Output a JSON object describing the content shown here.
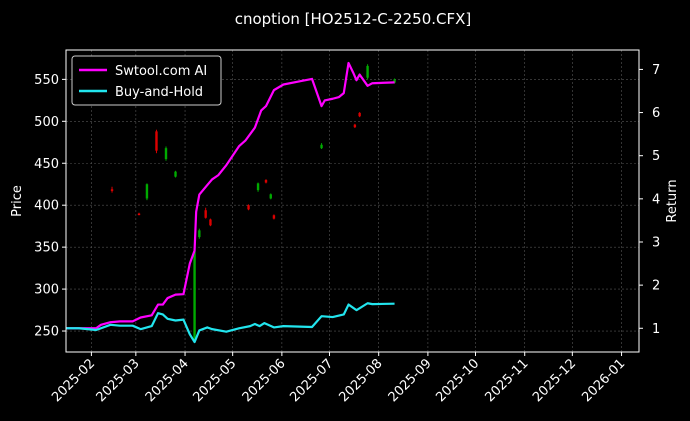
{
  "chart_data": {
    "type": "line",
    "title": "cnoption [HO2512-C-2250.CFX]",
    "ylabel": "Price",
    "y2label": "Return",
    "x_ticks": [
      "2025-02",
      "2025-03",
      "2025-04",
      "2025-05",
      "2025-06",
      "2025-07",
      "2025-08",
      "2025-09",
      "2025-10",
      "2025-11",
      "2025-12",
      "2026-01"
    ],
    "xlim": [
      "2025-01-16",
      "2026-01-12"
    ],
    "ylim": [
      225,
      585
    ],
    "y_ticks": [
      250,
      300,
      350,
      400,
      450,
      500,
      550
    ],
    "y2lim": [
      0.45,
      7.45
    ],
    "y2_ticks": [
      1,
      2,
      3,
      4,
      5,
      6,
      7
    ],
    "grid": true,
    "legend_position": "upper-left",
    "colors": {
      "up": "#00aa00",
      "down": "#dd0000",
      "strategy": "#ff00ff",
      "benchmark": "#22e5ee",
      "background": "#000000",
      "grid": "#555555"
    },
    "series": [
      {
        "name": "Swtool.com AI",
        "color": "#ff00ff",
        "axis": "right",
        "points": [
          [
            "2025-01-16",
            1.0
          ],
          [
            "2025-01-24",
            1.0
          ],
          [
            "2025-02-04",
            1.0
          ],
          [
            "2025-02-07",
            1.08
          ],
          [
            "2025-02-13",
            1.14
          ],
          [
            "2025-02-19",
            1.16
          ],
          [
            "2025-02-27",
            1.16
          ],
          [
            "2025-03-04",
            1.25
          ],
          [
            "2025-03-11",
            1.3
          ],
          [
            "2025-03-15",
            1.55
          ],
          [
            "2025-03-18",
            1.55
          ],
          [
            "2025-03-21",
            1.7
          ],
          [
            "2025-03-26",
            1.78
          ],
          [
            "2025-03-31",
            1.79
          ],
          [
            "2025-04-04",
            2.5
          ],
          [
            "2025-04-07",
            2.8
          ],
          [
            "2025-04-08",
            3.7
          ],
          [
            "2025-04-10",
            4.1
          ],
          [
            "2025-04-15",
            4.32
          ],
          [
            "2025-04-18",
            4.45
          ],
          [
            "2025-04-22",
            4.55
          ],
          [
            "2025-04-27",
            4.78
          ],
          [
            "2025-05-05",
            5.22
          ],
          [
            "2025-05-09",
            5.35
          ],
          [
            "2025-05-15",
            5.65
          ],
          [
            "2025-05-19",
            6.05
          ],
          [
            "2025-05-22",
            6.15
          ],
          [
            "2025-05-27",
            6.52
          ],
          [
            "2025-06-02",
            6.65
          ],
          [
            "2025-06-13",
            6.73
          ],
          [
            "2025-06-20",
            6.78
          ],
          [
            "2025-06-26",
            6.15
          ],
          [
            "2025-06-28",
            6.28
          ],
          [
            "2025-07-03",
            6.32
          ],
          [
            "2025-07-07",
            6.36
          ],
          [
            "2025-07-10",
            6.45
          ],
          [
            "2025-07-13",
            7.15
          ],
          [
            "2025-07-16",
            6.92
          ],
          [
            "2025-07-18",
            6.75
          ],
          [
            "2025-07-20",
            6.88
          ],
          [
            "2025-07-25",
            6.62
          ],
          [
            "2025-07-28",
            6.68
          ],
          [
            "2025-08-11",
            6.7
          ]
        ]
      },
      {
        "name": "Buy-and-Hold",
        "color": "#22e5ee",
        "axis": "right",
        "points": [
          [
            "2025-01-16",
            1.0
          ],
          [
            "2025-01-24",
            1.0
          ],
          [
            "2025-02-04",
            0.96
          ],
          [
            "2025-02-13",
            1.08
          ],
          [
            "2025-02-19",
            1.06
          ],
          [
            "2025-02-27",
            1.06
          ],
          [
            "2025-03-04",
            0.98
          ],
          [
            "2025-03-11",
            1.05
          ],
          [
            "2025-03-15",
            1.35
          ],
          [
            "2025-03-18",
            1.32
          ],
          [
            "2025-03-21",
            1.22
          ],
          [
            "2025-03-26",
            1.18
          ],
          [
            "2025-03-31",
            1.2
          ],
          [
            "2025-04-04",
            0.86
          ],
          [
            "2025-04-07",
            0.68
          ],
          [
            "2025-04-10",
            0.95
          ],
          [
            "2025-04-15",
            1.02
          ],
          [
            "2025-04-18",
            0.98
          ],
          [
            "2025-04-27",
            0.92
          ],
          [
            "2025-05-05",
            1.0
          ],
          [
            "2025-05-12",
            1.05
          ],
          [
            "2025-05-15",
            1.1
          ],
          [
            "2025-05-18",
            1.05
          ],
          [
            "2025-05-21",
            1.12
          ],
          [
            "2025-05-27",
            1.02
          ],
          [
            "2025-06-02",
            1.05
          ],
          [
            "2025-06-20",
            1.03
          ],
          [
            "2025-06-26",
            1.28
          ],
          [
            "2025-07-03",
            1.26
          ],
          [
            "2025-07-10",
            1.32
          ],
          [
            "2025-07-13",
            1.55
          ],
          [
            "2025-07-18",
            1.42
          ],
          [
            "2025-07-25",
            1.58
          ],
          [
            "2025-07-28",
            1.56
          ],
          [
            "2025-08-11",
            1.57
          ]
        ]
      }
    ],
    "candles": [
      {
        "date": "2025-02-14",
        "open": 419,
        "close": 417,
        "high": 422,
        "low": 415
      },
      {
        "date": "2025-03-03",
        "open": 390,
        "close": 389,
        "high": 391,
        "low": 388
      },
      {
        "date": "2025-03-08",
        "open": 408,
        "close": 425,
        "high": 426,
        "low": 406
      },
      {
        "date": "2025-03-14",
        "open": 488,
        "close": 465,
        "high": 490,
        "low": 462
      },
      {
        "date": "2025-03-20",
        "open": 455,
        "close": 468,
        "high": 470,
        "low": 453
      },
      {
        "date": "2025-03-26",
        "open": 434,
        "close": 440,
        "high": 441,
        "low": 433
      },
      {
        "date": "2025-04-07",
        "open": 240,
        "close": 345,
        "high": 347,
        "low": 238
      },
      {
        "date": "2025-04-10",
        "open": 362,
        "close": 370,
        "high": 372,
        "low": 360
      },
      {
        "date": "2025-04-14",
        "open": 394,
        "close": 385,
        "high": 397,
        "low": 384
      },
      {
        "date": "2025-04-17",
        "open": 383,
        "close": 376,
        "high": 384,
        "low": 375
      },
      {
        "date": "2025-05-11",
        "open": 400,
        "close": 395,
        "high": 401,
        "low": 394
      },
      {
        "date": "2025-05-17",
        "open": 418,
        "close": 426,
        "high": 427,
        "low": 416
      },
      {
        "date": "2025-05-22",
        "open": 430,
        "close": 427,
        "high": 431,
        "low": 426
      },
      {
        "date": "2025-05-25",
        "open": 408,
        "close": 413,
        "high": 414,
        "low": 407
      },
      {
        "date": "2025-05-27",
        "open": 388,
        "close": 384,
        "high": 389,
        "low": 383
      },
      {
        "date": "2025-06-26",
        "open": 468,
        "close": 472,
        "high": 474,
        "low": 467
      },
      {
        "date": "2025-07-17",
        "open": 496,
        "close": 493,
        "high": 497,
        "low": 492
      },
      {
        "date": "2025-07-20",
        "open": 510,
        "close": 506,
        "high": 511,
        "low": 505
      },
      {
        "date": "2025-07-25",
        "open": 552,
        "close": 566,
        "high": 568,
        "low": 550
      },
      {
        "date": "2025-08-11",
        "open": 546,
        "close": 550,
        "high": 551,
        "low": 545
      }
    ]
  }
}
